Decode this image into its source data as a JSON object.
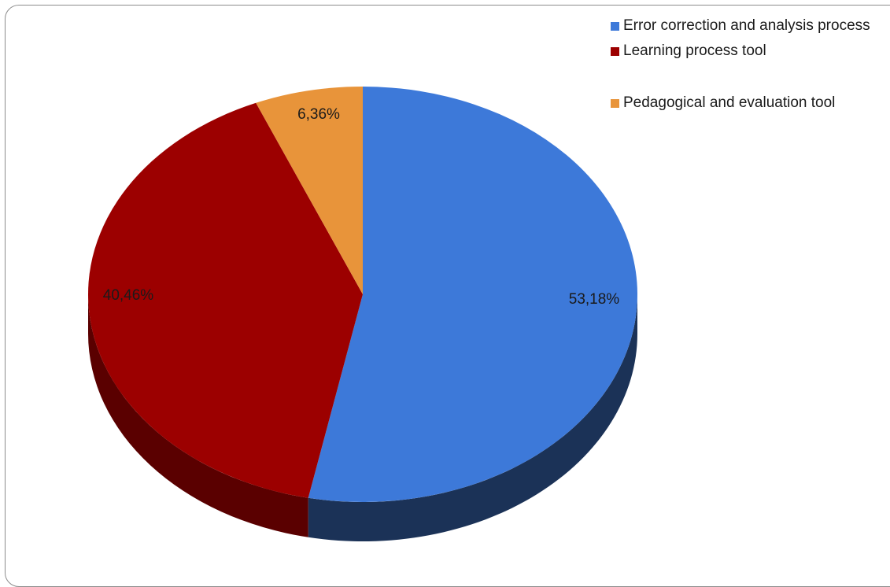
{
  "chart_data": {
    "type": "pie",
    "style": "3d",
    "title": "",
    "slices": [
      {
        "label": "Error correction and analysis process",
        "value": 53.18,
        "display": "53,18%",
        "color": "#3d79d9",
        "side_color": "#1b3257"
      },
      {
        "label": "Learning process tool",
        "value": 40.46,
        "display": "40,46%",
        "color": "#9c0000",
        "side_color": "#5a0000"
      },
      {
        "label": "Pedagogical and evaluation tool",
        "value": 6.36,
        "display": "6,36%",
        "color": "#e8943a",
        "side_color": "#9a5a1a"
      }
    ],
    "legend_position": "top-right"
  }
}
